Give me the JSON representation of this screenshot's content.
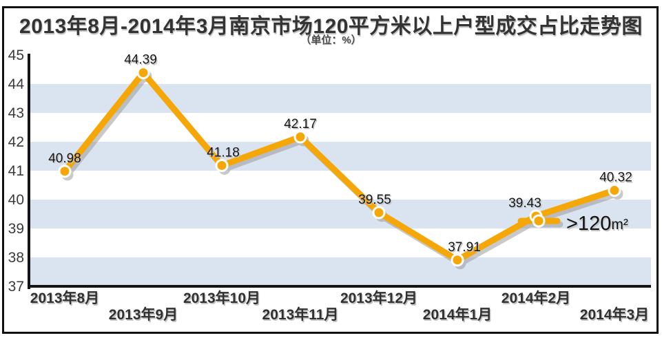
{
  "title": "2013年8月-2014年3月南京市场120平方米以上户型成交占比走势图",
  "subtitle": "（单位：%）",
  "legend": {
    "label": ">120m²"
  },
  "colors": {
    "line": "#F5A707",
    "marker_fill": "#F5A707",
    "marker_ring": "#FFFFFF",
    "shadow": "#9d9d9d",
    "band": "#DAE4F0",
    "axis": "#141414",
    "tick_text": "#3a3a3a",
    "label_text": "#161616",
    "label_shadow": "#c2c2c2"
  },
  "chart_data": {
    "type": "line",
    "title": "2013年8月-2014年3月南京市场120平方米以上户型成交占比走势图",
    "unit": "%",
    "categories": [
      "2013年8月",
      "2013年9月",
      "2013年10月",
      "2013年11月",
      "2013年12月",
      "2014年1月",
      "2014年2月",
      "2014年3月"
    ],
    "series": [
      {
        "name": ">120m²",
        "values": [
          40.98,
          44.39,
          41.18,
          42.17,
          39.55,
          37.91,
          39.43,
          40.32
        ]
      }
    ],
    "ylim": [
      37,
      45
    ],
    "yticks": [
      45,
      44,
      43,
      42,
      41,
      40,
      39,
      38,
      37
    ],
    "grid": "alternating horizontal bands shaded between 37-38, 39-40, 41-42, 43-44",
    "legend_position": "inside right, beside the 2014年2月 data point",
    "x_label_layout": "staggered on two rows"
  }
}
